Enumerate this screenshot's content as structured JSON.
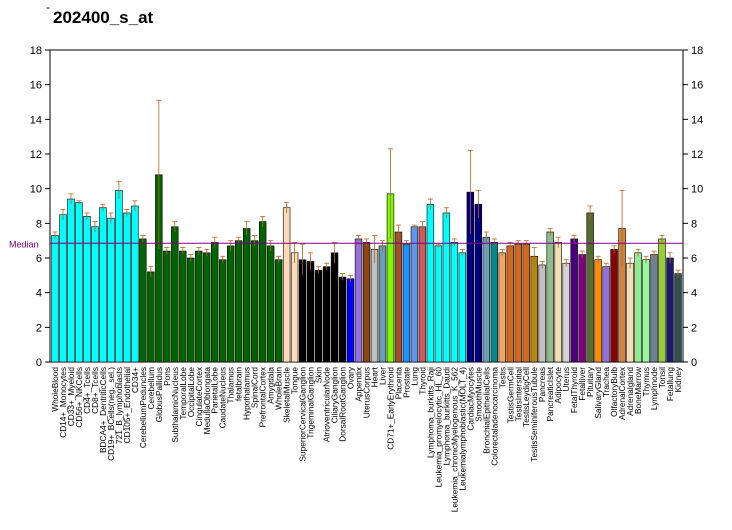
{
  "chart_data": {
    "type": "bar",
    "title": "202400_s_at",
    "corner_mark": "-",
    "xlabel": "",
    "ylabel": "",
    "ylim": [
      0,
      18
    ],
    "yticks": [
      0,
      2,
      4,
      6,
      8,
      10,
      12,
      14,
      16,
      18
    ],
    "grid": false,
    "median": {
      "label": "Median",
      "value": 6.85,
      "color": "#800080"
    },
    "categories": [
      "WholeBlood",
      "CD14+_Monocytes",
      "CD33+_Myeloid",
      "CD56+_NKCells",
      "CD4+_Tcells",
      "CD8+_Tcells",
      "BDCA4+_DentriticCells",
      "CD19+_BCells(neg._sel.)",
      "721_B_lymphoblasts",
      "CD105+_Endothelial",
      "CD34+",
      "CerebellumPeduncles",
      "Cerebellum",
      "GlobusPallidus",
      "Pons",
      "SubthalamicNucleus",
      "TemporalLobe",
      "OccipitalLobe",
      "CingulateCortex",
      "MedullaOblongata",
      "ParietalLobe",
      "CaudateNucleus",
      "Thalamus",
      "fetalbrain",
      "Hypothalamus",
      "SpinalCord",
      "PrefrontalCortex",
      "Amygdala",
      "WholeBrain",
      "SkeletalMuscle",
      "Tongue",
      "SuperiorCervicalGanglion",
      "TrigeminalGanglion",
      "Skin",
      "AtrioventricularNode",
      "CiliaryGanglion",
      "DorsalRootGanglion",
      "Ovary",
      "Appendix",
      "UterusCorpus",
      "Heart",
      "Liver",
      "CD71+_EarlyErythroid",
      "Placenta",
      "Prostate",
      "Lung",
      "Thyroid",
      "Lymphoma_burkitts_Raji",
      "Leukemia_promyelocytic_HL_60",
      "Lymphoma_burkitts_Daudi",
      "Leukemia_chronicMyelogenous_K_562",
      "Leukemialymphoblastic(MOLT_4)",
      "CardiacMyocytes",
      "SmoothMuscle",
      "BronchialEpithelialCells",
      "Colorectaladenocarcinoma",
      "Testis",
      "TestisGermCell",
      "TestisIntersitial",
      "TestisLeydigCell",
      "TestisSeminiferousTubule",
      "Pancreas",
      "PancreaticIslet",
      "Adipocyte",
      "Uterus",
      "FetalThyroid",
      "Fetalliver",
      "Pituitary",
      "SalivaryGland",
      "Trachea",
      "OlfactoryBulb",
      "AdrenalCortex",
      "Adrenalgland",
      "BoneMarrow",
      "Thymus",
      "Lymphnode",
      "Tonsil",
      "Fetallung",
      "Kidney"
    ],
    "values": [
      7.3,
      8.5,
      9.4,
      9.2,
      8.4,
      7.8,
      8.9,
      8.3,
      9.9,
      8.6,
      9.0,
      7.1,
      5.2,
      10.8,
      6.4,
      7.8,
      6.4,
      6.0,
      6.4,
      6.3,
      6.9,
      5.9,
      6.7,
      7.0,
      7.7,
      7.0,
      8.1,
      6.7,
      5.9,
      8.9,
      6.3,
      5.9,
      5.8,
      5.3,
      5.5,
      6.3,
      4.9,
      4.8,
      7.1,
      6.9,
      6.5,
      6.7,
      9.7,
      7.5,
      6.8,
      7.8,
      7.8,
      9.1,
      6.7,
      8.6,
      6.9,
      6.3,
      9.8,
      9.1,
      7.2,
      6.9,
      6.3,
      6.7,
      6.8,
      6.8,
      6.1,
      5.6,
      7.5,
      6.9,
      5.7,
      7.1,
      6.2,
      8.6,
      5.9,
      5.5,
      6.5,
      7.7,
      5.7,
      6.3,
      5.9,
      6.2,
      7.1,
      6.0,
      5.1
    ],
    "errors": [
      0.2,
      0.3,
      0.3,
      0.1,
      0.2,
      0.3,
      0.2,
      0.3,
      0.5,
      0.2,
      0.3,
      0.2,
      0.3,
      4.3,
      0.2,
      0.3,
      0.2,
      0.2,
      0.2,
      0.2,
      0.3,
      0.2,
      0.3,
      0.2,
      0.4,
      0.3,
      0.3,
      0.3,
      0.2,
      0.3,
      0.6,
      0.9,
      0.5,
      0.2,
      0.2,
      0.6,
      0.2,
      0.2,
      0.2,
      0.2,
      0.8,
      0.3,
      2.6,
      0.4,
      0.2,
      0.1,
      0.3,
      0.3,
      0.1,
      0.3,
      0.2,
      0.2,
      2.4,
      0.8,
      0.3,
      0.2,
      0.2,
      0.2,
      0.2,
      0.2,
      0.5,
      0.2,
      0.2,
      0.3,
      0.2,
      0.2,
      0.2,
      0.4,
      0.2,
      0.2,
      0.2,
      2.2,
      0.3,
      0.2,
      0.2,
      0.2,
      0.2,
      0.3,
      0.2
    ],
    "colors": [
      "#00ffff",
      "#00ffff",
      "#00ffff",
      "#00ffff",
      "#00ffff",
      "#00ffff",
      "#00ffff",
      "#00ffff",
      "#00ffff",
      "#00ffff",
      "#00ffff",
      "#006400",
      "#006400",
      "#006400",
      "#006400",
      "#006400",
      "#006400",
      "#006400",
      "#006400",
      "#006400",
      "#006400",
      "#006400",
      "#006400",
      "#006400",
      "#006400",
      "#006400",
      "#006400",
      "#006400",
      "#006400",
      "#ffdab9",
      "#ffdab9",
      "#000000",
      "#000000",
      "#000000",
      "#000000",
      "#000000",
      "#000000",
      "#0000ff",
      "#9370db",
      "#8b4513",
      "#c0c0c0",
      "#6a9fb5",
      "#7cfc00",
      "#a0522d",
      "#1e90ff",
      "#6495ed",
      "#cd5c5c",
      "#00ffff",
      "#00ffff",
      "#00ffff",
      "#00ffff",
      "#00ffff",
      "#000080",
      "#000080",
      "#6a9fb5",
      "#008b8b",
      "#f4a460",
      "#d2691e",
      "#d2691e",
      "#d2691e",
      "#b8860b",
      "#c0c0c0",
      "#8fbc8f",
      "#f5deb3",
      "#d3d3d3",
      "#4b0082",
      "#800080",
      "#556b2f",
      "#ff8c00",
      "#9370db",
      "#8b0000",
      "#cd853f",
      "#f5deb3",
      "#90ee90",
      "#98fb98",
      "#708090",
      "#9acd32",
      "#191970",
      "#2f4f4f"
    ]
  }
}
